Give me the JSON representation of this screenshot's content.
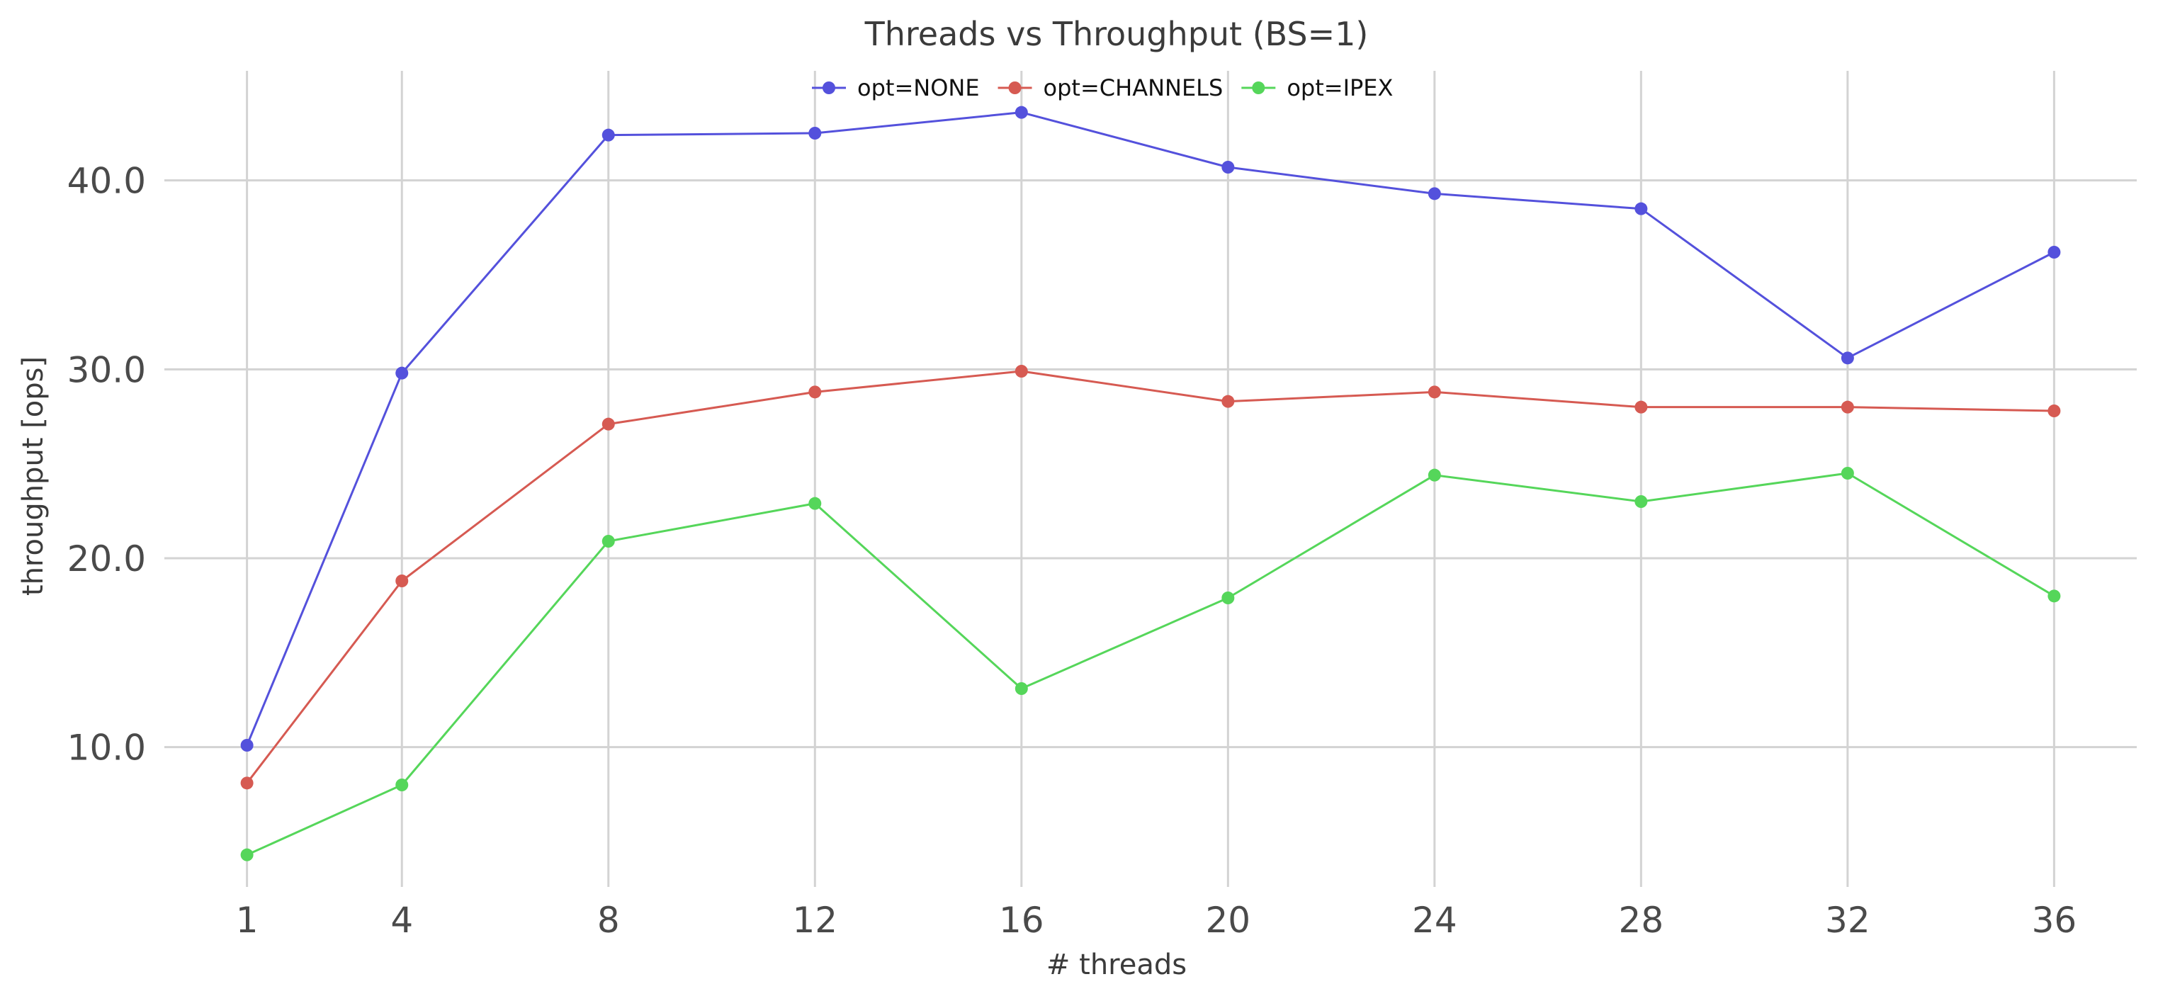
{
  "chart_data": {
    "type": "line",
    "title": "Threads vs Throughput (BS=1)",
    "xlabel": "# threads",
    "ylabel": "throughput [ops]",
    "x": [
      1,
      4,
      8,
      12,
      16,
      20,
      24,
      28,
      32,
      36
    ],
    "x_tick_labels": [
      "1",
      "4",
      "8",
      "12",
      "16",
      "20",
      "24",
      "28",
      "32",
      "36"
    ],
    "y_ticks": [
      10,
      20,
      30,
      40
    ],
    "y_tick_labels": [
      "10.0",
      "20.0",
      "30.0",
      "40.0"
    ],
    "xlim": [
      -0.6,
      37.6
    ],
    "ylim": [
      2.6,
      45.8
    ],
    "grid": true,
    "legend_position": "top-center",
    "series": [
      {
        "name": "opt=NONE",
        "color": "#5451dc",
        "values": [
          10.1,
          29.8,
          42.4,
          42.5,
          43.6,
          40.7,
          39.3,
          38.5,
          30.6,
          36.2
        ]
      },
      {
        "name": "opt=CHANNELS",
        "color": "#d65a52",
        "values": [
          8.1,
          18.8,
          27.1,
          28.8,
          29.9,
          28.3,
          28.8,
          28.0,
          28.0,
          27.8
        ]
      },
      {
        "name": "opt=IPEX",
        "color": "#55d65a",
        "values": [
          4.3,
          8.0,
          20.9,
          22.9,
          13.1,
          17.9,
          24.4,
          23.0,
          24.5,
          18.0
        ]
      }
    ]
  }
}
